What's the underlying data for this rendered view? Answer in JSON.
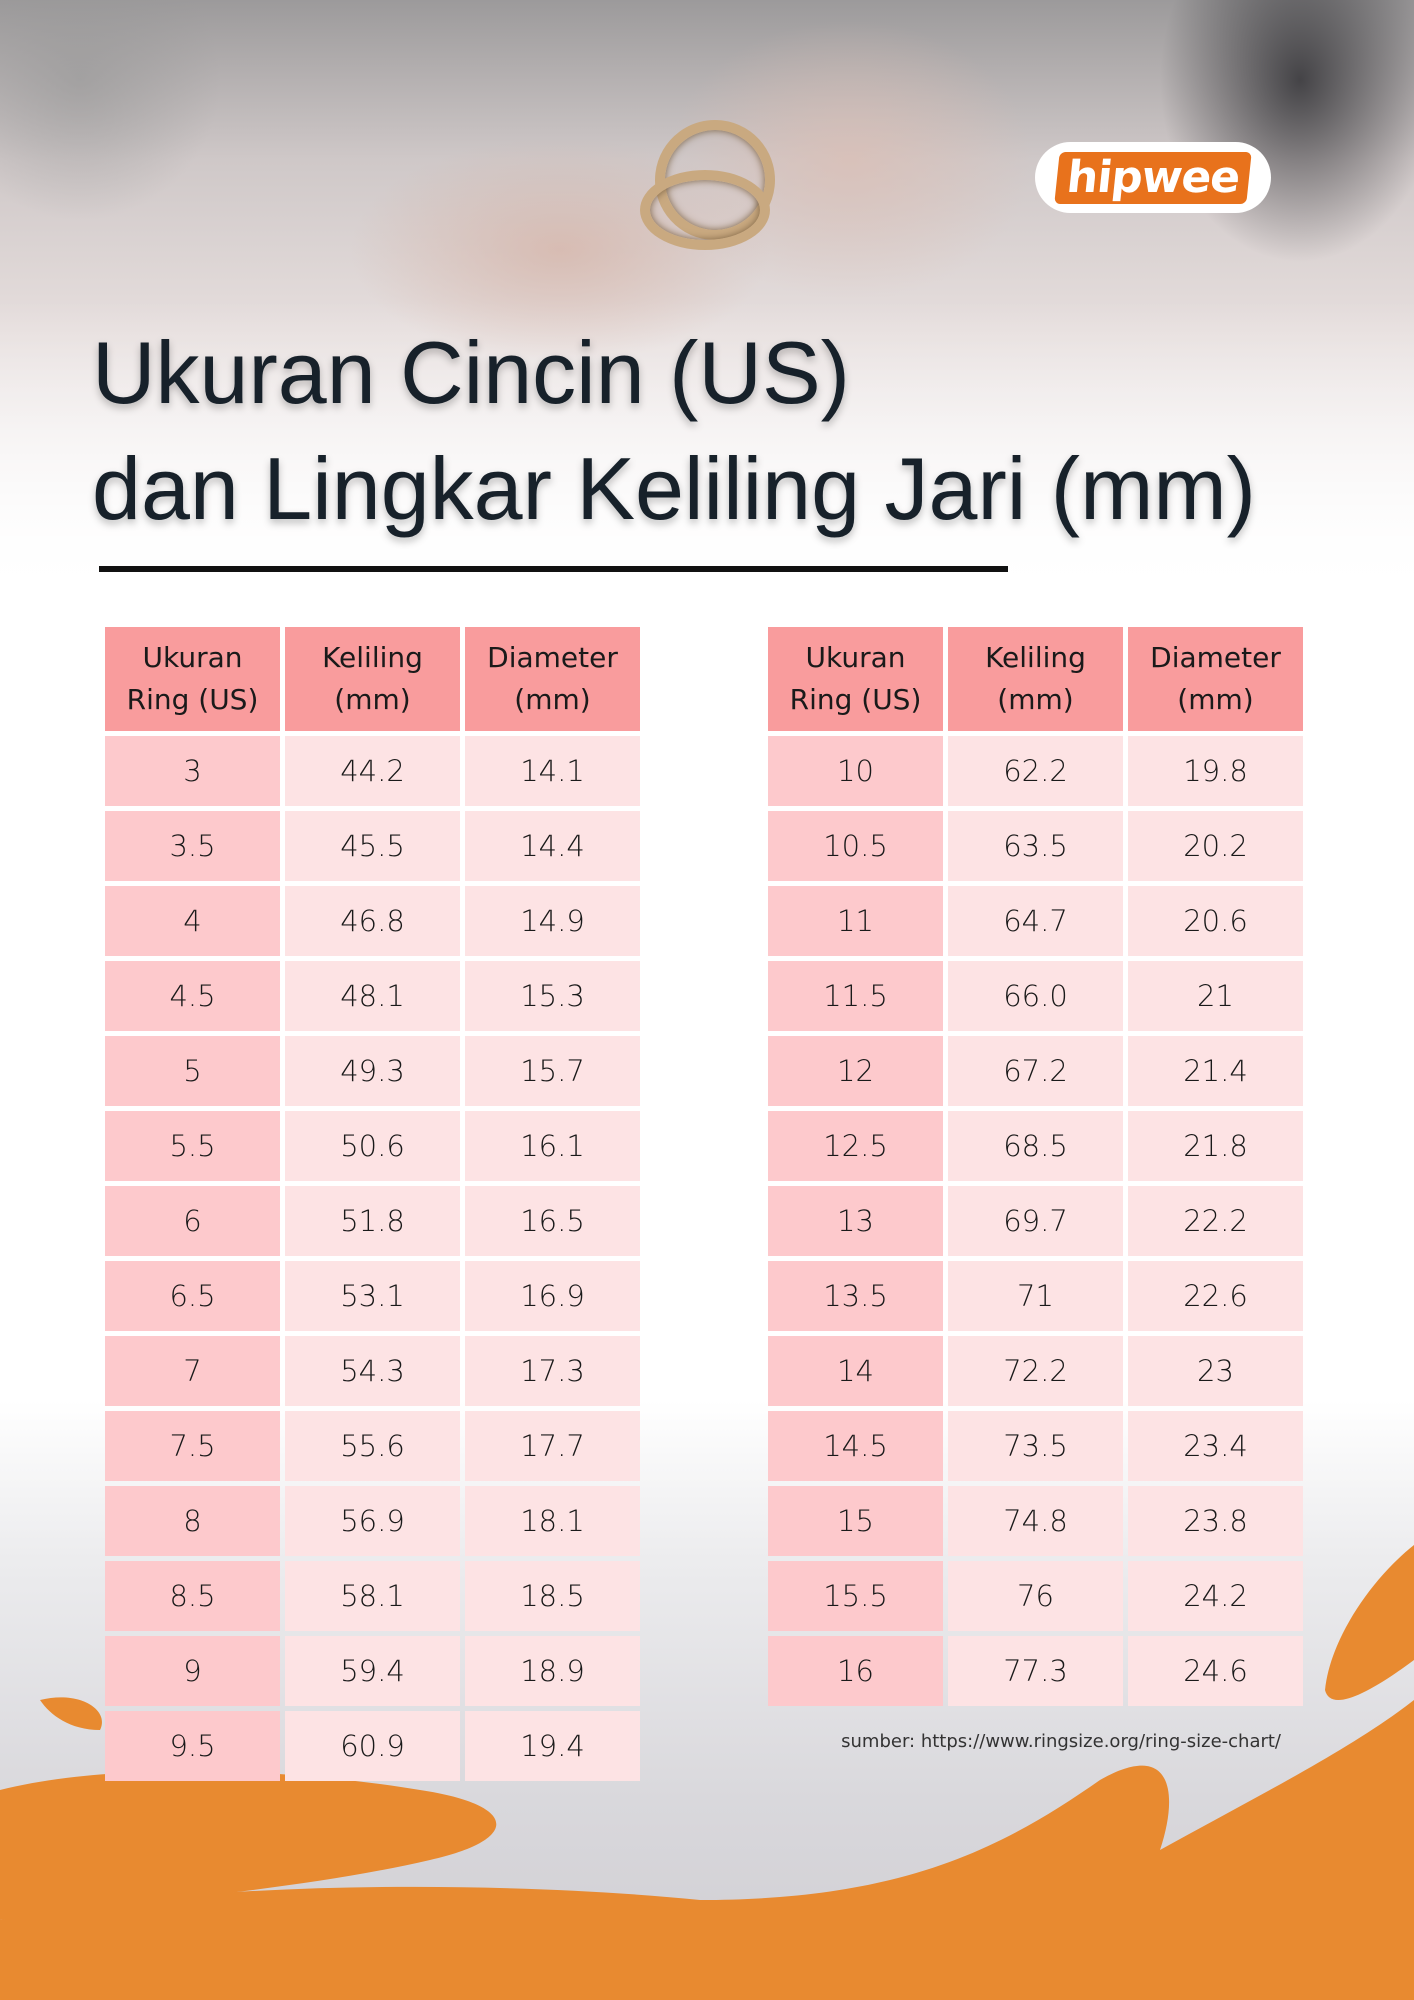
{
  "brand": {
    "logo_text": "hipwee",
    "accent": "#e88a30",
    "header_color": "#f99c9d",
    "first_col_color": "#fdc9cc",
    "cell_color": "#fde3e4"
  },
  "title": {
    "line1": "Ukuran Cincin (US)",
    "line2": "dan Lingkar Keliling Jari (mm)"
  },
  "table": {
    "headers": [
      "Ukuran\nRing (US)",
      "Keliling\n(mm)",
      "Diameter\n(mm)"
    ],
    "left_rows": [
      [
        "3",
        "44.2",
        "14.1"
      ],
      [
        "3.5",
        "45.5",
        "14.4"
      ],
      [
        "4",
        "46.8",
        "14.9"
      ],
      [
        "4.5",
        "48.1",
        "15.3"
      ],
      [
        "5",
        "49.3",
        "15.7"
      ],
      [
        "5.5",
        "50.6",
        "16.1"
      ],
      [
        "6",
        "51.8",
        "16.5"
      ],
      [
        "6.5",
        "53.1",
        "16.9"
      ],
      [
        "7",
        "54.3",
        "17.3"
      ],
      [
        "7.5",
        "55.6",
        "17.7"
      ],
      [
        "8",
        "56.9",
        "18.1"
      ],
      [
        "8.5",
        "58.1",
        "18.5"
      ],
      [
        "9",
        "59.4",
        "18.9"
      ],
      [
        "9.5",
        "60.9",
        "19.4"
      ]
    ],
    "right_rows": [
      [
        "10",
        "62.2",
        "19.8"
      ],
      [
        "10.5",
        "63.5",
        "20.2"
      ],
      [
        "11",
        "64.7",
        "20.6"
      ],
      [
        "11.5",
        "66.0",
        "21"
      ],
      [
        "12",
        "67.2",
        "21.4"
      ],
      [
        "12.5",
        "68.5",
        "21.8"
      ],
      [
        "13",
        "69.7",
        "22.2"
      ],
      [
        "13.5",
        "71",
        "22.6"
      ],
      [
        "14",
        "72.2",
        "23"
      ],
      [
        "14.5",
        "73.5",
        "23.4"
      ],
      [
        "15",
        "74.8",
        "23.8"
      ],
      [
        "15.5",
        "76",
        "24.2"
      ],
      [
        "16",
        "77.3",
        "24.6"
      ]
    ]
  },
  "source": "sumber: https://www.ringsize.org/ring-size-chart/"
}
